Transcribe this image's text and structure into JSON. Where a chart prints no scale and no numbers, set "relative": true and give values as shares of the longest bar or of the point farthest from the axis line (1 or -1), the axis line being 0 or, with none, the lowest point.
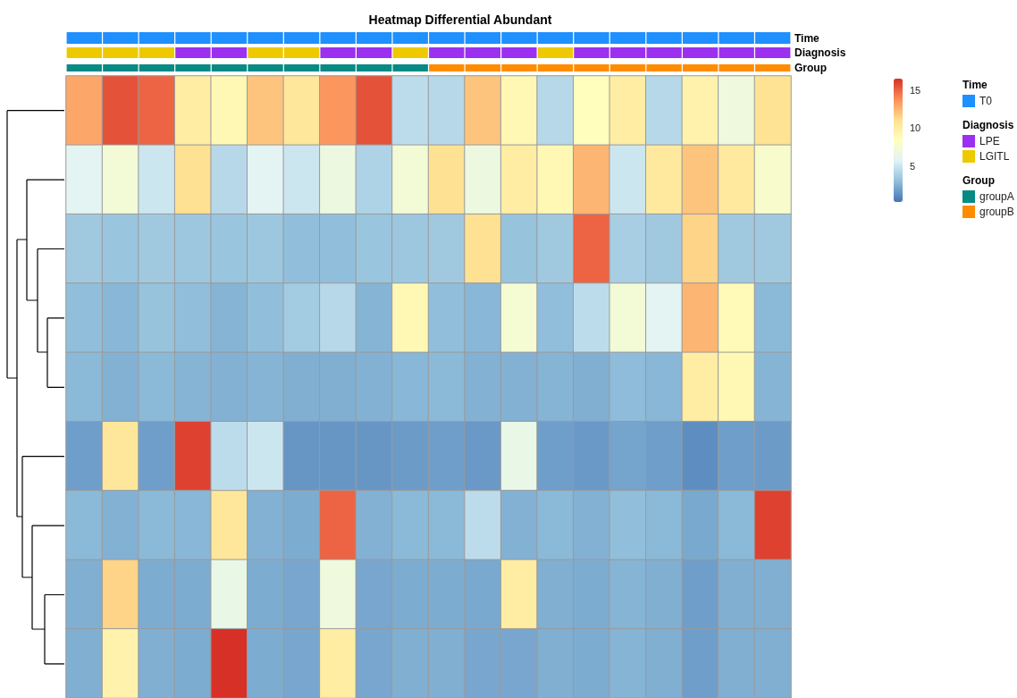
{
  "chart_data": [
    {
      "type": "bar",
      "stacked": true,
      "relative": true,
      "categories": [
        null,
        null,
        null,
        null,
        null,
        null,
        null,
        null,
        null,
        null,
        null,
        null,
        null,
        null,
        null,
        null,
        null,
        null,
        null,
        null
      ],
      "title": "Heatmap Differential Abundant",
      "y2label": "Time",
      "legend_title": "Time",
      "legend": "right",
      "series": [
        {
          "name": "T0",
          "color": "#1e90ff",
          "values": [
            1,
            1,
            1,
            1,
            1,
            1,
            1,
            1,
            1,
            1,
            1,
            1,
            1,
            1,
            1,
            1,
            1,
            1,
            1,
            1
          ]
        }
      ]
    },
    {
      "type": "bar",
      "stacked": true,
      "relative": true,
      "categories": [
        null,
        null,
        null,
        null,
        null,
        null,
        null,
        null,
        null,
        null,
        null,
        null,
        null,
        null,
        null,
        null,
        null,
        null,
        null,
        null
      ],
      "y2label": "Diagnosis",
      "legend_title": "Diagnosis",
      "legend": "right",
      "series": [
        {
          "name": "LPE",
          "color": "#9b30f0",
          "values": [
            null,
            null,
            null,
            1,
            1,
            null,
            null,
            1,
            1,
            null,
            1,
            1,
            1,
            null,
            1,
            1,
            1,
            1,
            1,
            1
          ]
        },
        {
          "name": "LGITL",
          "color": "#eec900",
          "values": [
            1,
            1,
            1,
            null,
            null,
            1,
            1,
            null,
            null,
            1,
            null,
            null,
            null,
            1,
            null,
            null,
            null,
            null,
            null,
            null
          ]
        }
      ]
    },
    {
      "type": "bar",
      "stacked": true,
      "relative": true,
      "categories": [
        null,
        null,
        null,
        null,
        null,
        null,
        null,
        null,
        null,
        null,
        null,
        null,
        null,
        null,
        null,
        null,
        null,
        null,
        null,
        null
      ],
      "y2label": "Group",
      "legend_title": "Group",
      "legend": "right",
      "series": [
        {
          "name": "groupA",
          "color": "#078a84",
          "values": [
            1,
            1,
            1,
            1,
            1,
            1,
            1,
            1,
            1,
            1,
            null,
            null,
            null,
            null,
            null,
            null,
            null,
            null,
            null,
            null
          ]
        },
        {
          "name": "groupB",
          "color": "#ff8c00",
          "values": [
            null,
            null,
            null,
            null,
            null,
            null,
            null,
            null,
            null,
            null,
            1,
            1,
            1,
            1,
            1,
            1,
            1,
            1,
            1,
            1
          ]
        }
      ]
    },
    {
      "type": "heatmap",
      "categories": [
        null,
        null,
        null,
        null,
        null,
        null,
        null,
        null,
        null,
        null,
        null,
        null,
        null,
        null,
        null,
        null,
        null,
        null,
        null,
        null
      ],
      "y_categories": [
        null,
        null,
        null,
        null,
        null,
        null,
        null,
        null,
        null
      ],
      "clim": [
        0.3,
        16.5
      ],
      "cticks": [
        5,
        10,
        15
      ],
      "cells": [
        [
          13,
          15.5,
          15,
          10,
          9,
          12,
          10.5,
          13.5,
          15.5,
          4.5,
          4.3,
          12,
          9,
          4.3,
          8.5,
          10,
          4.3,
          9.5,
          7,
          10.8
        ],
        [
          6,
          7.3,
          5,
          11,
          4.3,
          6,
          5,
          6.8,
          4,
          7.3,
          11,
          6.8,
          10,
          9,
          12.5,
          5,
          10.3,
          12,
          10.3,
          7.8
        ],
        [
          3.5,
          3.3,
          3.5,
          3.4,
          3.3,
          3.4,
          3,
          3,
          3.3,
          3.4,
          3.5,
          11,
          3.2,
          3.5,
          15,
          3.8,
          3.5,
          11.5,
          3.5,
          3.5
        ],
        [
          3,
          2.7,
          3.2,
          3,
          2.6,
          3,
          3.6,
          4.3,
          2.6,
          9,
          3,
          2.7,
          7.5,
          3,
          4.5,
          7.3,
          6,
          12.5,
          8.8,
          2.8
        ],
        [
          2.8,
          2.5,
          2.8,
          2.6,
          2.5,
          2.6,
          2.4,
          2.4,
          2.5,
          2.7,
          2.8,
          2.5,
          2.5,
          2.6,
          2.4,
          2.9,
          2.7,
          10,
          9,
          2.6
        ],
        [
          1.8,
          10.5,
          1.8,
          16,
          4.5,
          5,
          1.5,
          1.5,
          1.5,
          1.7,
          1.8,
          1.6,
          6.5,
          1.8,
          1.6,
          2,
          1.8,
          1.2,
          1.8,
          1.7
        ],
        [
          2.8,
          2.5,
          2.8,
          2.7,
          10.5,
          2.5,
          2.3,
          15,
          2.5,
          2.8,
          2.8,
          4.5,
          2.5,
          2.8,
          2.5,
          3,
          2.8,
          2.2,
          2.8,
          16
        ],
        [
          2.4,
          11.5,
          2.3,
          2.3,
          6.5,
          2.3,
          2.1,
          7,
          2.1,
          2.3,
          2.3,
          2.2,
          10,
          2.4,
          2.3,
          2.6,
          2.4,
          1.8,
          2.4,
          2.4
        ],
        [
          2.4,
          9.5,
          2.4,
          2.3,
          16.5,
          2.3,
          2.1,
          10,
          2.1,
          2.4,
          2.4,
          2.1,
          2.1,
          2.4,
          2.3,
          2.6,
          2.4,
          1.8,
          2.4,
          2.4
        ]
      ]
    }
  ]
}
